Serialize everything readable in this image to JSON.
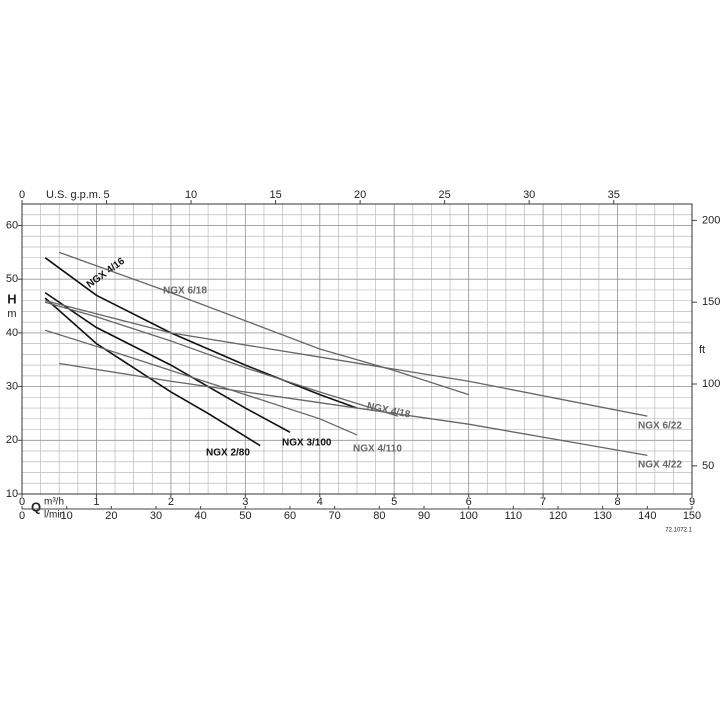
{
  "chart_data": {
    "type": "line",
    "code": "72.1072.1",
    "y_label": "H",
    "y_unit": "m",
    "y2_unit": "ft",
    "x_label": "Q",
    "x_unit": "m³/h",
    "x_lmin_unit": "l/min",
    "x_gpm_unit": "U.S. g.p.m.",
    "xlim": [
      0,
      9
    ],
    "xticks": [
      0,
      1,
      2,
      3,
      4,
      5,
      6,
      7,
      8,
      9
    ],
    "ylim": [
      10,
      64
    ],
    "yticks": [
      10,
      20,
      30,
      40,
      50,
      60
    ],
    "y2lim": [
      32.8,
      210
    ],
    "y2ticks": [
      50,
      100,
      150,
      200
    ],
    "x_lmin_lim": [
      0,
      150
    ],
    "x_lmin_ticks": [
      0,
      10,
      20,
      30,
      40,
      50,
      60,
      70,
      80,
      90,
      100,
      110,
      120,
      130,
      140,
      150
    ],
    "x_gpm_lim": [
      0,
      39.63
    ],
    "x_gpm_ticks": [
      0,
      5,
      10,
      15,
      20,
      25,
      30,
      35
    ],
    "grid": true,
    "series": [
      {
        "name": "NGX 4/16",
        "color": "#111111",
        "x": [
          0.31,
          1,
          2,
          3,
          4,
          4.5
        ],
        "values": [
          54,
          47,
          40,
          34,
          28.5,
          26
        ]
      },
      {
        "name": "NGX 2/80",
        "color": "#111111",
        "x": [
          0.31,
          1,
          2,
          2.5,
          3.2
        ],
        "values": [
          46.5,
          38,
          29,
          25,
          19
        ]
      },
      {
        "name": "NGX 3/100",
        "color": "#111111",
        "x": [
          0.31,
          1,
          2,
          3,
          3.6
        ],
        "values": [
          47.5,
          41,
          34,
          26,
          21.5
        ]
      },
      {
        "name": "NGX 6/18",
        "color": "#666666",
        "x": [
          0.5,
          2,
          4,
          5,
          6
        ],
        "values": [
          55,
          47.5,
          37,
          33,
          28.5
        ]
      },
      {
        "name": "NGX 4/18",
        "color": "#666666",
        "x": [
          0.31,
          1,
          2,
          3,
          4,
          5.05
        ],
        "values": [
          45.7,
          43,
          38.5,
          33.5,
          29,
          24.5
        ]
      },
      {
        "name": "NGX 4/110",
        "color": "#666666",
        "x": [
          0.31,
          1,
          2,
          3,
          4,
          4.5
        ],
        "values": [
          40.5,
          37.5,
          33,
          28.5,
          24,
          21
        ]
      },
      {
        "name": "NGX 6/22",
        "color": "#666666",
        "x": [
          0.31,
          2,
          4,
          6,
          8.4
        ],
        "values": [
          46,
          40,
          35.5,
          31,
          24.5
        ]
      },
      {
        "name": "NGX 4/22",
        "color": "#666666",
        "x": [
          0.5,
          2,
          4,
          6,
          8.4
        ],
        "values": [
          34.3,
          31,
          27,
          23,
          17.2
        ]
      }
    ]
  }
}
